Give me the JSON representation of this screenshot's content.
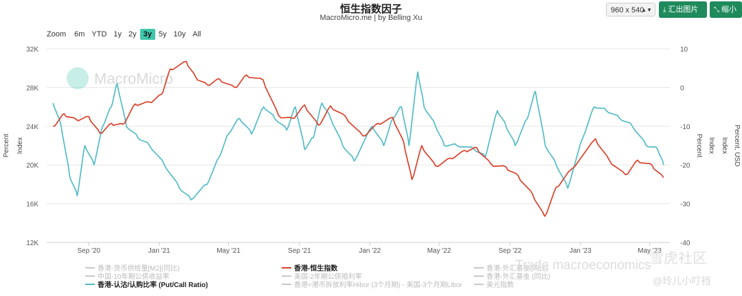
{
  "header": {
    "title": "恒生指数因子",
    "subtitle": "MacroMicro.me | by Belling Xu",
    "size_select": "960 x 540",
    "export_label": "汇出图片",
    "shrink_label": "缩小"
  },
  "zoom": {
    "label": "Zoom",
    "options": [
      "6m",
      "YTD",
      "1y",
      "2y",
      "3y",
      "5y",
      "10y",
      "All"
    ],
    "active": "3y"
  },
  "watermark": {
    "brand": "MacroMicro",
    "corner_text_1": "雪虎社区",
    "corner_text_2": "Trade macroeconomics",
    "corner_text_3": "@玲儿小叮裆"
  },
  "colors": {
    "hsi": "#d8412b",
    "putcall": "#52bcc6",
    "disabled": "#c8c8c8",
    "grid": "#e6e6e6"
  },
  "chart_data": {
    "type": "line",
    "x_ticks": [
      "Sep '20",
      "Jan '21",
      "May '21",
      "Sep '21",
      "Jan '22",
      "May '22",
      "Sep '22",
      "Jan '23",
      "May '23"
    ],
    "left_axis": {
      "label": "Index",
      "label2": "Percent",
      "ticks": [
        "12K",
        "16K",
        "20K",
        "24K",
        "28K",
        "32K"
      ],
      "range": [
        12000,
        32000
      ]
    },
    "right_axis": {
      "ticks": [
        "10",
        "0",
        "-10",
        "-20",
        "-30",
        "-40"
      ],
      "range": [
        -40,
        10
      ],
      "labels": [
        "Percent",
        "Index",
        "Index",
        "Percent, USD"
      ]
    },
    "series": [
      {
        "name": "香港-恒生指数",
        "axis": "left",
        "color": "#d8412b",
        "points": [
          [
            "2020-07-01",
            24000
          ],
          [
            "2020-07-20",
            25300
          ],
          [
            "2020-08-10",
            24700
          ],
          [
            "2020-09-01",
            25000
          ],
          [
            "2020-09-20",
            23300
          ],
          [
            "2020-10-10",
            24300
          ],
          [
            "2020-10-30",
            24200
          ],
          [
            "2020-11-20",
            26300
          ],
          [
            "2020-12-15",
            26500
          ],
          [
            "2021-01-05",
            27300
          ],
          [
            "2021-01-20",
            29900
          ],
          [
            "2021-02-17",
            30700
          ],
          [
            "2021-03-05",
            29100
          ],
          [
            "2021-03-25",
            28300
          ],
          [
            "2021-04-15",
            28900
          ],
          [
            "2021-05-12",
            28000
          ],
          [
            "2021-06-01",
            29300
          ],
          [
            "2021-06-30",
            28800
          ],
          [
            "2021-07-27",
            25100
          ],
          [
            "2021-08-20",
            24800
          ],
          [
            "2021-09-10",
            26200
          ],
          [
            "2021-10-04",
            24100
          ],
          [
            "2021-10-25",
            26100
          ],
          [
            "2021-11-20",
            25000
          ],
          [
            "2021-12-20",
            23000
          ],
          [
            "2022-01-15",
            24300
          ],
          [
            "2022-02-10",
            24900
          ],
          [
            "2022-03-01",
            22300
          ],
          [
            "2022-03-15",
            18500
          ],
          [
            "2022-04-01",
            22000
          ],
          [
            "2022-04-25",
            19900
          ],
          [
            "2022-05-20",
            20700
          ],
          [
            "2022-06-15",
            21500
          ],
          [
            "2022-07-05",
            21800
          ],
          [
            "2022-07-30",
            20100
          ],
          [
            "2022-08-25",
            19800
          ],
          [
            "2022-09-15",
            18900
          ],
          [
            "2022-10-10",
            17000
          ],
          [
            "2022-10-31",
            14700
          ],
          [
            "2022-11-20",
            17700
          ],
          [
            "2022-12-15",
            19500
          ],
          [
            "2023-01-27",
            22700
          ],
          [
            "2023-02-20",
            20500
          ],
          [
            "2023-03-20",
            19000
          ],
          [
            "2023-04-10",
            20500
          ],
          [
            "2023-05-05",
            20000
          ],
          [
            "2023-05-25",
            18700
          ]
        ]
      },
      {
        "name": "香港-认沽/认购比率 (Put/Call Ratio)",
        "axis": "right",
        "color": "#52bcc6",
        "points": [
          [
            "2020-07-01",
            -4
          ],
          [
            "2020-07-15",
            -10
          ],
          [
            "2020-07-30",
            -23
          ],
          [
            "2020-08-12",
            -28
          ],
          [
            "2020-08-25",
            -15
          ],
          [
            "2020-09-10",
            -20
          ],
          [
            "2020-09-25",
            -10
          ],
          [
            "2020-10-10",
            -5
          ],
          [
            "2020-10-20",
            1
          ],
          [
            "2020-11-05",
            -10
          ],
          [
            "2020-11-25",
            -13
          ],
          [
            "2020-12-15",
            -15
          ],
          [
            "2021-01-10",
            -20
          ],
          [
            "2021-02-05",
            -26
          ],
          [
            "2021-02-25",
            -29
          ],
          [
            "2021-03-25",
            -25
          ],
          [
            "2021-04-15",
            -18
          ],
          [
            "2021-05-01",
            -12
          ],
          [
            "2021-05-20",
            -8
          ],
          [
            "2021-06-10",
            -12
          ],
          [
            "2021-07-01",
            -5
          ],
          [
            "2021-07-20",
            -8
          ],
          [
            "2021-08-10",
            -11
          ],
          [
            "2021-08-25",
            -5
          ],
          [
            "2021-09-10",
            -16
          ],
          [
            "2021-09-25",
            -13
          ],
          [
            "2021-10-10",
            -4
          ],
          [
            "2021-10-25",
            -8
          ],
          [
            "2021-11-15",
            -15
          ],
          [
            "2021-12-05",
            -19
          ],
          [
            "2022-01-05",
            -10
          ],
          [
            "2022-01-25",
            -15
          ],
          [
            "2022-02-10",
            -8
          ],
          [
            "2022-02-25",
            -5
          ],
          [
            "2022-03-10",
            -15
          ],
          [
            "2022-03-25",
            4
          ],
          [
            "2022-04-05",
            -5
          ],
          [
            "2022-04-25",
            -10
          ],
          [
            "2022-05-10",
            -15
          ],
          [
            "2022-06-01",
            -15
          ],
          [
            "2022-07-01",
            -16
          ],
          [
            "2022-07-20",
            -18
          ],
          [
            "2022-08-10",
            -6
          ],
          [
            "2022-08-25",
            -10
          ],
          [
            "2022-09-10",
            -15
          ],
          [
            "2022-10-01",
            -8
          ],
          [
            "2022-10-15",
            -1
          ],
          [
            "2022-11-01",
            -15
          ],
          [
            "2022-11-20",
            -20
          ],
          [
            "2022-12-10",
            -26
          ],
          [
            "2023-01-05",
            -13
          ],
          [
            "2023-01-25",
            -5
          ],
          [
            "2023-02-15",
            -6
          ],
          [
            "2023-03-10",
            -8
          ],
          [
            "2023-04-01",
            -10
          ],
          [
            "2023-04-25",
            -15
          ],
          [
            "2023-05-15",
            -16
          ],
          [
            "2023-05-25",
            -20
          ]
        ]
      }
    ],
    "legend": [
      {
        "name": "香港-货币供给量[M2](同比)",
        "active": false
      },
      {
        "name": "香港-恒生指数",
        "active": true,
        "color": "#d8412b"
      },
      {
        "name": "香港-外汇基金(同比)",
        "active": false
      },
      {
        "name": "中国-10年期公债收益率",
        "active": false
      },
      {
        "name": "美国-2年期公债殖利率",
        "active": false
      },
      {
        "name": "香港-外汇基金 (同比)",
        "active": false
      },
      {
        "name": "香港-认沽/认购比率 (Put/Call Ratio)",
        "active": true,
        "color": "#52bcc6"
      },
      {
        "name": "香港=港币拆放利率Hibor (3个月期) - 美国-3个月期Libor",
        "active": false
      },
      {
        "name": "美元指数",
        "active": false
      }
    ]
  }
}
